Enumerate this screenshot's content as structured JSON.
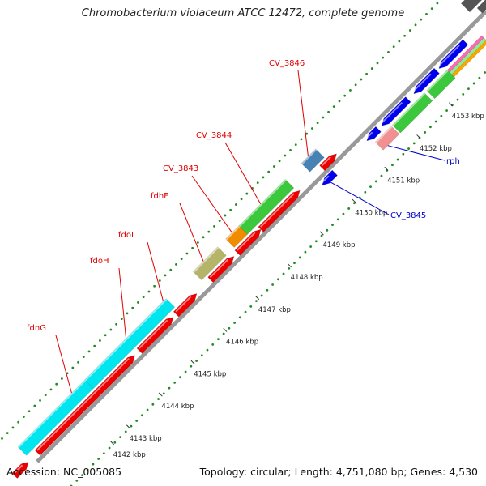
{
  "title": "Chromobacterium violaceum ATCC 12472, complete genome",
  "footer": {
    "accession": "Accession: NC_005085",
    "topology": "Topology: circular; Length: 4,751,080 bp; Genes: 4,530"
  },
  "ticks": [
    {
      "label": "4142 kbp",
      "pos": -0.5
    },
    {
      "label": "4143 kbp",
      "pos": 0
    },
    {
      "label": "4144 kbp",
      "pos": 1
    },
    {
      "label": "4145 kbp",
      "pos": 2
    },
    {
      "label": "4146 kbp",
      "pos": 3
    },
    {
      "label": "4147 kbp",
      "pos": 4
    },
    {
      "label": "4148 kbp",
      "pos": 5
    },
    {
      "label": "4149 kbp",
      "pos": 6
    },
    {
      "label": "4150 kbp",
      "pos": 7
    },
    {
      "label": "4151 kbp",
      "pos": 8
    },
    {
      "label": "4152 kbp",
      "pos": 9
    },
    {
      "label": "4153 kbp",
      "pos": 10
    }
  ],
  "gene_labels": [
    {
      "name": "fdnG",
      "color": "#e00000"
    },
    {
      "name": "fdoH",
      "color": "#e00000"
    },
    {
      "name": "fdoI",
      "color": "#e00000"
    },
    {
      "name": "fdhE",
      "color": "#e00000"
    },
    {
      "name": "CV_3843",
      "color": "#e00000"
    },
    {
      "name": "CV_3844",
      "color": "#e00000"
    },
    {
      "name": "CV_3846",
      "color": "#e00000"
    },
    {
      "name": "CV_3845",
      "color": "#0000cc"
    },
    {
      "name": "rph",
      "color": "#0000cc"
    }
  ],
  "colors": {
    "backbone": "#999999",
    "cds_forward": "#ee0000",
    "cds_reverse": "#0000ee",
    "ring_fdnG": "#00e5ee",
    "ring_fdhE": "#b5b56a",
    "ring_CV_3843": "#f08c00",
    "ring_CV_3844": "#3cc83c",
    "ring_CV_3846": "#4682b4",
    "ring_rph": "#f09090",
    "gc_dots": "#228b22"
  }
}
